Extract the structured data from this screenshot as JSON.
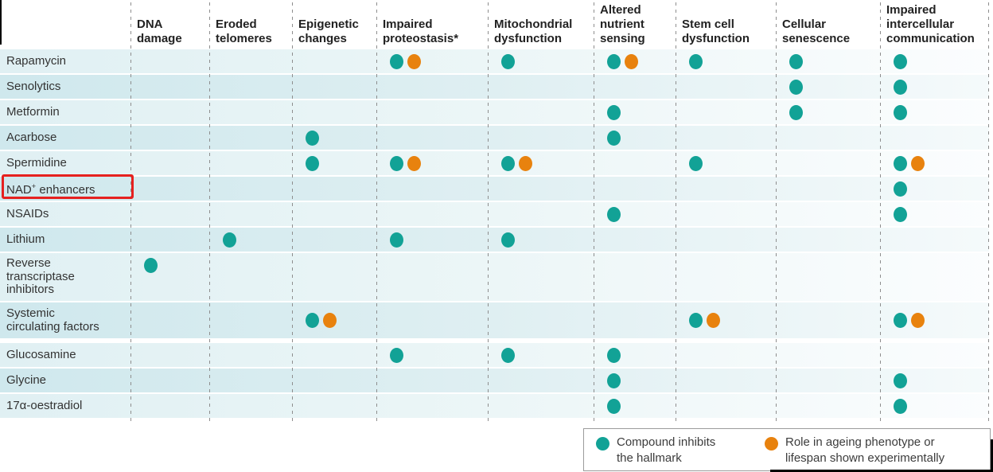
{
  "chart_data": {
    "type": "table",
    "title": "Compounds versus hallmarks of ageing",
    "mark_legend": {
      "teal": "Compound inhibits the hallmark",
      "orange": "Role in ageing phenotype or lifespan shown experimentally"
    },
    "columns": [
      "DNA damage",
      "Eroded telomeres",
      "Epigenetic changes",
      "Impaired proteostasis*",
      "Mitochondrial dysfunction",
      "Altered nutrient sensing",
      "Stem cell dysfunction",
      "Cellular senescence",
      "Impaired intercellular communication"
    ],
    "rows": [
      {
        "compound": "Rapamycin",
        "cells": [
          "",
          "",
          "",
          "teal+orange",
          "teal",
          "teal+orange",
          "teal",
          "teal",
          "teal"
        ]
      },
      {
        "compound": "Senolytics",
        "cells": [
          "",
          "",
          "",
          "",
          "",
          "",
          "",
          "teal",
          "teal"
        ]
      },
      {
        "compound": "Metformin",
        "cells": [
          "",
          "",
          "",
          "",
          "",
          "teal",
          "",
          "teal",
          "teal"
        ]
      },
      {
        "compound": "Acarbose",
        "cells": [
          "",
          "",
          "teal",
          "",
          "",
          "teal",
          "",
          "",
          ""
        ]
      },
      {
        "compound": "Spermidine",
        "cells": [
          "",
          "",
          "teal",
          "teal+orange",
          "teal+orange",
          "",
          "teal",
          "",
          "teal+orange"
        ]
      },
      {
        "compound": "NAD+ enhancers",
        "highlighted": true,
        "cells": [
          "",
          "",
          "",
          "",
          "",
          "",
          "",
          "",
          "teal"
        ]
      },
      {
        "compound": "NSAIDs",
        "cells": [
          "",
          "",
          "",
          "",
          "",
          "teal",
          "",
          "",
          "teal"
        ]
      },
      {
        "compound": "Lithium",
        "cells": [
          "",
          "teal",
          "",
          "teal",
          "teal",
          "",
          "",
          "",
          ""
        ]
      },
      {
        "compound": "Reverse transcriptase inhibitors",
        "cells": [
          "teal",
          "",
          "",
          "",
          "",
          "",
          "",
          "",
          ""
        ]
      },
      {
        "compound": "Systemic circulating factors",
        "cells": [
          "",
          "",
          "teal+orange",
          "",
          "",
          "",
          "teal+orange",
          "",
          "teal+orange"
        ]
      },
      {
        "compound": "Glucosamine",
        "cells": [
          "",
          "",
          "",
          "teal",
          "teal",
          "teal",
          "",
          "",
          ""
        ]
      },
      {
        "compound": "Glycine",
        "cells": [
          "",
          "",
          "",
          "",
          "",
          "teal",
          "",
          "",
          "teal"
        ]
      },
      {
        "compound": "17α-oestradiol",
        "cells": [
          "",
          "",
          "",
          "",
          "",
          "teal",
          "",
          "",
          "teal"
        ]
      }
    ]
  },
  "display": {
    "column_lines": [
      [
        "DNA",
        "damage"
      ],
      [
        "Eroded",
        "telomeres"
      ],
      [
        "Epigenetic",
        "changes"
      ],
      [
        "Impaired",
        "proteostasis*"
      ],
      [
        "Mitochondrial",
        "dysfunction"
      ],
      [
        "Altered",
        "nutrient",
        "sensing"
      ],
      [
        "Stem cell",
        "dysfunction"
      ],
      [
        "Cellular",
        "senescence"
      ],
      [
        "Impaired",
        "intercellular",
        "communication"
      ]
    ],
    "row_lines": {
      "8": [
        "Reverse",
        "transcriptase",
        "inhibitors"
      ],
      "9": [
        "Systemic",
        "circulating factors"
      ]
    },
    "nad_label_segments": [
      {
        "t": "NAD"
      },
      {
        "t": "+",
        "sup": true
      },
      {
        "t": " enhancers"
      }
    ],
    "legend_entries": [
      {
        "key": "teal",
        "lines": [
          "Compound inhibits",
          "the hallmark"
        ]
      },
      {
        "key": "orange",
        "lines": [
          "Role in ageing phenotype or",
          "lifespan shown experimentally"
        ]
      }
    ],
    "colors": {
      "teal": "#12a296",
      "orange": "#e8820e",
      "highlight_red": "#e6211f"
    }
  }
}
